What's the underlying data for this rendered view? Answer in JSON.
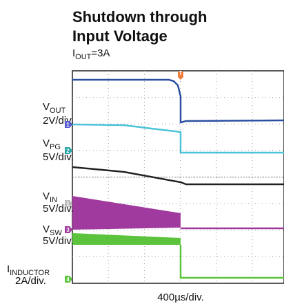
{
  "title": [
    "Shutdown through",
    "Input Voltage"
  ],
  "subtitle": {
    "main": "I",
    "sub": "OUT",
    "suffix": "=3A"
  },
  "channels": [
    {
      "name": {
        "main": "V",
        "sub": "OUT"
      },
      "scale": "2V/div.",
      "marker": "1"
    },
    {
      "name": {
        "main": "V",
        "sub": "PG"
      },
      "scale": "5V/div.",
      "marker": "2"
    },
    {
      "name": {
        "main": "V",
        "sub": "IN"
      },
      "scale": "5V/div.",
      "marker": "1"
    },
    {
      "name": {
        "main": "V",
        "sub": "SW"
      },
      "scale": "5V/div.",
      "marker": "3"
    },
    {
      "name": {
        "main": "I",
        "sub": "INDUCTOR"
      },
      "scale": "2A/div.",
      "marker": "4"
    }
  ],
  "trigger": "T",
  "time_scale": "400µs/div."
}
